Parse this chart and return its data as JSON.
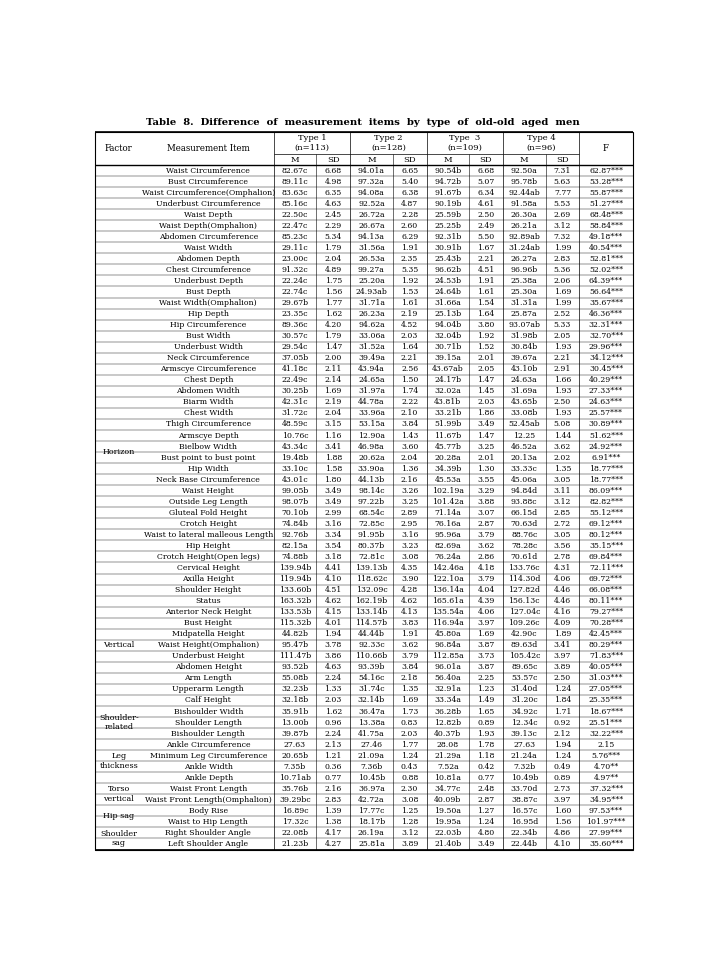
{
  "title": "Table  8.  Difference  of  measurement  items  by  type  of  old-old  aged  men",
  "rows": [
    [
      "",
      "Waist Circumference",
      "82.67c",
      "6.68",
      "94.01a",
      "6.65",
      "90.54b",
      "6.68",
      "92.50a",
      "7.31",
      "62.87***"
    ],
    [
      "",
      "Bust Circumference",
      "89.11c",
      "4.98",
      "97.32a",
      "5.40",
      "94.72b",
      "5.07",
      "95.78b",
      "5.63",
      "53.28***"
    ],
    [
      "",
      "Waist Circumference(Omphalion)",
      "83.63c",
      "6.35",
      "94.08a",
      "6.38",
      "91.67b",
      "6.34",
      "92.44ab",
      "7.77",
      "55.87***"
    ],
    [
      "",
      "Underbust Circumference",
      "85.16c",
      "4.63",
      "92.52a",
      "4.87",
      "90.19b",
      "4.61",
      "91.58a",
      "5.53",
      "51.27***"
    ],
    [
      "",
      "Waist Depth",
      "22.50c",
      "2.45",
      "26.72a",
      "2.28",
      "25.59b",
      "2.50",
      "26.30a",
      "2.69",
      "68.48***"
    ],
    [
      "",
      "Waist Depth(Omphalion)",
      "22.47c",
      "2.29",
      "26.67a",
      "2.60",
      "25.25b",
      "2.49",
      "26.21a",
      "3.12",
      "58.84***"
    ],
    [
      "",
      "Abdomen Circumference",
      "85.23c",
      "5.34",
      "94.13a",
      "6.29",
      "92.31b",
      "5.50",
      "92.89ab",
      "7.32",
      "49.18***"
    ],
    [
      "",
      "Waist Width",
      "29.11c",
      "1.79",
      "31.56a",
      "1.91",
      "30.91b",
      "1.67",
      "31.24ab",
      "1.99",
      "40.54***"
    ],
    [
      "",
      "Abdomen Depth",
      "23.00c",
      "2.04",
      "26.53a",
      "2.35",
      "25.43b",
      "2.21",
      "26.27a",
      "2.83",
      "52.81***"
    ],
    [
      "",
      "Chest Circumference",
      "91.32c",
      "4.89",
      "99.27a",
      "5.35",
      "96.62b",
      "4.51",
      "96.96b",
      "5.36",
      "52.02***"
    ],
    [
      "",
      "Underbust Depth",
      "22.24c",
      "1.75",
      "25.20a",
      "1.92",
      "24.53b",
      "1.91",
      "25.38a",
      "2.06",
      "64.39***"
    ],
    [
      "",
      "Bust Depth",
      "22.74c",
      "1.56",
      "24.93ab",
      "1.53",
      "24.64b",
      "1.61",
      "25.30a",
      "1.69",
      "56.64***"
    ],
    [
      "",
      "Waist Width(Omphalion)",
      "29.67b",
      "1.77",
      "31.71a",
      "1.61",
      "31.66a",
      "1.54",
      "31.31a",
      "1.99",
      "35.67***"
    ],
    [
      "",
      "Hip Depth",
      "23.35c",
      "1.62",
      "26.23a",
      "2.19",
      "25.13b",
      "1.64",
      "25.87a",
      "2.52",
      "46.36***"
    ],
    [
      "Horizon",
      "Hip Circumference",
      "89.36c",
      "4.20",
      "94.62a",
      "4.52",
      "94.04b",
      "3.80",
      "93.07ab",
      "5.33",
      "32.31***"
    ],
    [
      "",
      "Bust Width",
      "30.57c",
      "1.79",
      "33.06a",
      "2.03",
      "32.04b",
      "1.92",
      "31.98b",
      "2.05",
      "32.70***"
    ],
    [
      "",
      "Underbust Width",
      "29.54c",
      "1.47",
      "31.52a",
      "1.64",
      "30.71b",
      "1.52",
      "30.84b",
      "1.93",
      "29.96***"
    ],
    [
      "",
      "Neck Circumference",
      "37.05b",
      "2.00",
      "39.49a",
      "2.21",
      "39.15a",
      "2.01",
      "39.67a",
      "2.21",
      "34.12***"
    ],
    [
      "",
      "Armscye Circumference",
      "41.18c",
      "2.11",
      "43.94a",
      "2.56",
      "43.67ab",
      "2.05",
      "43.10b",
      "2.91",
      "30.45***"
    ],
    [
      "",
      "Chest Depth",
      "22.49c",
      "2.14",
      "24.65a",
      "1.50",
      "24.17b",
      "1.47",
      "24.63a",
      "1.66",
      "40.29***"
    ],
    [
      "",
      "Abdomen Width",
      "30.25b",
      "1.69",
      "31.97a",
      "1.74",
      "32.02a",
      "1.45",
      "31.69a",
      "1.93",
      "27.33***"
    ],
    [
      "",
      "Biarm Width",
      "42.31c",
      "2.19",
      "44.78a",
      "2.22",
      "43.81b",
      "2.03",
      "43.65b",
      "2.50",
      "24.63***"
    ],
    [
      "",
      "Chest Width",
      "31.72c",
      "2.04",
      "33.96a",
      "2.10",
      "33.21b",
      "1.86",
      "33.08b",
      "1.93",
      "25.57***"
    ],
    [
      "",
      "Thigh Circumference",
      "48.59c",
      "3.15",
      "53.15a",
      "3.84",
      "51.99b",
      "3.49",
      "52.45ab",
      "5.08",
      "30.89***"
    ],
    [
      "",
      "Armscye Depth",
      "10.76c",
      "1.16",
      "12.90a",
      "1.43",
      "11.67b",
      "1.47",
      "12.25",
      "1.44",
      "51.62***"
    ],
    [
      "",
      "Bielbow Width",
      "43.34c",
      "3.41",
      "46.98a",
      "3.60",
      "45.77b",
      "3.25",
      "46.52a",
      "3.62",
      "24.92***"
    ],
    [
      "",
      "Bust point to bust point",
      "19.48b",
      "1.88",
      "20.62a",
      "2.04",
      "20.28a",
      "2.01",
      "20.13a",
      "2.02",
      "6.91***"
    ],
    [
      "",
      "Hip Width",
      "33.10c",
      "1.58",
      "33.90a",
      "1.36",
      "34.39b",
      "1.30",
      "33.33c",
      "1.35",
      "18.77***"
    ],
    [
      "",
      "Neck Base Circumference",
      "43.01c",
      "1.80",
      "44.13b",
      "2.16",
      "45.53a",
      "3.55",
      "45.06a",
      "3.05",
      "18.77***"
    ],
    [
      "",
      "Waist Height",
      "99.05b",
      "3.49",
      "98.14c",
      "3.26",
      "102.19a",
      "3.29",
      "94.84d",
      "3.11",
      "86.09***"
    ],
    [
      "",
      "Outside Leg Length",
      "98.07b",
      "3.49",
      "97.22b",
      "3.25",
      "101.42a",
      "3.88",
      "93.88c",
      "3.12",
      "82.82***"
    ],
    [
      "",
      "Gluteal Fold Height",
      "70.10b",
      "2.99",
      "68.54c",
      "2.89",
      "71.14a",
      "3.07",
      "66.15d",
      "2.85",
      "55.12***"
    ],
    [
      "",
      "Crotch Height",
      "74.84b",
      "3.16",
      "72.85c",
      "2.95",
      "76.16a",
      "2.87",
      "70.63d",
      "2.72",
      "69.12***"
    ],
    [
      "",
      "Waist to lateral malleous Length",
      "92.76b",
      "3.34",
      "91.95b",
      "3.16",
      "95.96a",
      "3.79",
      "88.76c",
      "3.05",
      "80.12***"
    ],
    [
      "",
      "Hip Height",
      "82.15a",
      "3.54",
      "80.37b",
      "3.23",
      "82.69a",
      "3.62",
      "78.28c",
      "3.56",
      "35.15***"
    ],
    [
      "",
      "Crotch Height(Open legs)",
      "74.88b",
      "3.18",
      "72.81c",
      "3.08",
      "76.24a",
      "2.86",
      "70.61d",
      "2.78",
      "69.84***"
    ],
    [
      "",
      "Cervical Height",
      "139.94b",
      "4.41",
      "139.13b",
      "4.35",
      "142.46a",
      "4.18",
      "133.76c",
      "4.31",
      "72.11***"
    ],
    [
      "",
      "Axilla Height",
      "119.94b",
      "4.10",
      "118.62c",
      "3.90",
      "122.10a",
      "3.79",
      "114.30d",
      "4.06",
      "69.72***"
    ],
    [
      "Vertical",
      "Shoulder Height",
      "133.60b",
      "4.51",
      "132.09c",
      "4.28",
      "136.14a",
      "4.04",
      "127.82d",
      "4.46",
      "66.08***"
    ],
    [
      "",
      "Status",
      "163.32b",
      "4.62",
      "162.19b",
      "4.62",
      "165.61a",
      "4.39",
      "156.13c",
      "4.46",
      "80.11***"
    ],
    [
      "",
      "Anterior Neck Height",
      "133.53b",
      "4.15",
      "133.14b",
      "4.13",
      "135.54a",
      "4.06",
      "127.04c",
      "4.16",
      "79.27***"
    ],
    [
      "",
      "Bust Height",
      "115.32b",
      "4.01",
      "114.57b",
      "3.83",
      "116.94a",
      "3.97",
      "109.26c",
      "4.09",
      "70.28***"
    ],
    [
      "",
      "Midpatella Height",
      "44.82b",
      "1.94",
      "44.44b",
      "1.91",
      "45.80a",
      "1.69",
      "42.90c",
      "1.89",
      "42.45***"
    ],
    [
      "",
      "Waist Height(Omphalion)",
      "95.47b",
      "3.78",
      "92.33c",
      "3.62",
      "96.84a",
      "3.87",
      "89.63d",
      "3.41",
      "80.29***"
    ],
    [
      "",
      "Underbust Height",
      "111.47b",
      "3.86",
      "110.66b",
      "3.79",
      "112.85a",
      "3.73",
      "105.42c",
      "3.97",
      "71.83***"
    ],
    [
      "",
      "Abdomen Height",
      "93.52b",
      "4.63",
      "93.39b",
      "3.84",
      "96.01a",
      "3.87",
      "89.65c",
      "3.89",
      "40.05***"
    ],
    [
      "",
      "Arm Length",
      "55.08b",
      "2.24",
      "54.16c",
      "2.18",
      "56.40a",
      "2.25",
      "53.57c",
      "2.50",
      "31.03***"
    ],
    [
      "",
      "Upperarm Length",
      "32.23b",
      "1.33",
      "31.74c",
      "1.35",
      "32.91a",
      "1.23",
      "31.40d",
      "1.24",
      "27.05***"
    ],
    [
      "",
      "Calf Height",
      "32.18b",
      "2.03",
      "32.14b",
      "1.69",
      "33.34a",
      "1.49",
      "31.20c",
      "1.84",
      "25.35***"
    ],
    [
      "Shoulder-\nrelated",
      "Bishoulder Width",
      "35.91b",
      "1.62",
      "36.47a",
      "1.73",
      "36.28b",
      "1.65",
      "34.92c",
      "1.71",
      "18.67***"
    ],
    [
      "",
      "Shoulder Length",
      "13.00b",
      "0.96",
      "13.38a",
      "0.83",
      "12.82b",
      "0.89",
      "12.34c",
      "0.92",
      "25.51***"
    ],
    [
      "",
      "Bishoulder Length",
      "39.87b",
      "2.24",
      "41.75a",
      "2.03",
      "40.37b",
      "1.93",
      "39.13c",
      "2.12",
      "32.22***"
    ],
    [
      "Leg\nthickness",
      "Ankle Circumference",
      "27.63",
      "2.13",
      "27.46",
      "1.77",
      "28.08",
      "1.78",
      "27.63",
      "1.94",
      "2.15"
    ],
    [
      "",
      "Minimum Leg Circumference",
      "20.65b",
      "1.21",
      "21.09a",
      "1.24",
      "21.29a",
      "1.18",
      "21.24a",
      "1.24",
      "5.76***"
    ],
    [
      "",
      "Ankle Width",
      "7.35b",
      "0.36",
      "7.36b",
      "0.43",
      "7.52a",
      "0.42",
      "7.32b",
      "0.49",
      "4.70**"
    ],
    [
      "",
      "Ankle Depth",
      "10.71ab",
      "0.77",
      "10.45b",
      "0.88",
      "10.81a",
      "0.77",
      "10.49b",
      "0.89",
      "4.97**"
    ],
    [
      "Torso\nvertical",
      "Waist Front Length",
      "35.76b",
      "2.16",
      "36.97a",
      "2.30",
      "34.77c",
      "2.48",
      "33.70d",
      "2.73",
      "37.32***"
    ],
    [
      "",
      "Waist Front Length(Omphalion)",
      "39.29bc",
      "2.83",
      "42.72a",
      "3.08",
      "40.09b",
      "2.87",
      "38.87c",
      "3.97",
      "34.95***"
    ],
    [
      "Hip sag",
      "Body Rise",
      "16.89c",
      "1.39",
      "17.77c",
      "1.25",
      "19.50a",
      "1.27",
      "16.57c",
      "1.60",
      "97.53***"
    ],
    [
      "",
      "Waist to Hip Length",
      "17.32c",
      "1.38",
      "18.17b",
      "1.28",
      "19.95a",
      "1.24",
      "16.95d",
      "1.56",
      "101.97***"
    ],
    [
      "Shoulder\nsag",
      "Right Shoulder Angle",
      "22.08b",
      "4.17",
      "26.19a",
      "3.12",
      "22.03b",
      "4.80",
      "22.34b",
      "4.86",
      "27.99***"
    ],
    [
      "",
      "Left Shoulder Angle",
      "21.23b",
      "4.27",
      "25.81a",
      "3.89",
      "21.40b",
      "3.49",
      "22.44b",
      "4.10",
      "35.60***"
    ]
  ]
}
